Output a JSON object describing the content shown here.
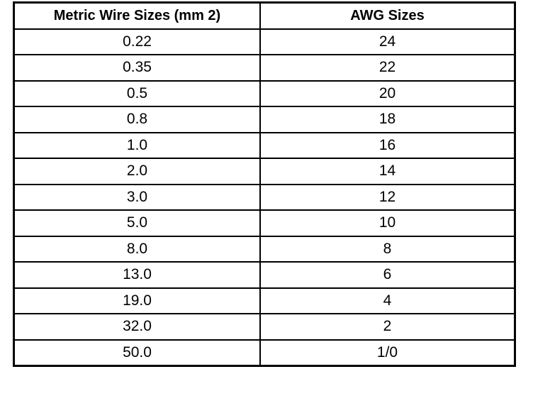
{
  "table": {
    "header": [
      "Metric Wire Sizes (mm 2)",
      "AWG Sizes"
    ],
    "rows": [
      [
        "0.22",
        "24"
      ],
      [
        "0.35",
        "22"
      ],
      [
        "0.5",
        "20"
      ],
      [
        "0.8",
        "18"
      ],
      [
        "1.0",
        "16"
      ],
      [
        "2.0",
        "14"
      ],
      [
        "3.0",
        "12"
      ],
      [
        "5.0",
        "10"
      ],
      [
        "8.0",
        "8"
      ],
      [
        "13.0",
        "6"
      ],
      [
        "19.0",
        "4"
      ],
      [
        "32.0",
        "2"
      ],
      [
        "50.0",
        "1/0"
      ]
    ]
  }
}
